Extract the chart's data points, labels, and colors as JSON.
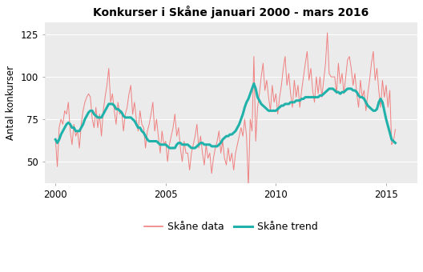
{
  "title": "Konkurser i Skåne januari 2000 - mars 2016",
  "ylabel": "Antal konkurser",
  "plot_bg_color": "#EBEBEB",
  "fig_bg_color": "#FFFFFF",
  "grid_color": "#FFFFFF",
  "data_color": "#F08080",
  "trend_color": "#20B2AA",
  "data_label": "Skåne data",
  "trend_label": "Skåne trend",
  "ylim": [
    37,
    132
  ],
  "yticks": [
    50,
    75,
    100,
    125
  ],
  "xlim": [
    1999.5,
    2016.42
  ],
  "xticks": [
    2000,
    2005,
    2010,
    2015
  ],
  "raw_data": [
    63,
    47,
    70,
    75,
    72,
    80,
    78,
    85,
    68,
    60,
    72,
    65,
    68,
    58,
    72,
    80,
    85,
    88,
    90,
    88,
    75,
    70,
    82,
    70,
    78,
    65,
    80,
    88,
    95,
    105,
    85,
    90,
    80,
    72,
    85,
    78,
    80,
    68,
    78,
    82,
    90,
    95,
    78,
    85,
    75,
    68,
    80,
    72,
    70,
    58,
    68,
    72,
    78,
    85,
    68,
    75,
    65,
    55,
    68,
    60,
    62,
    50,
    60,
    65,
    70,
    78,
    65,
    70,
    58,
    50,
    62,
    55,
    55,
    45,
    55,
    60,
    65,
    72,
    58,
    65,
    55,
    48,
    60,
    52,
    55,
    43,
    52,
    58,
    62,
    68,
    55,
    62,
    52,
    48,
    58,
    50,
    55,
    45,
    55,
    60,
    65,
    70,
    65,
    75,
    65,
    35,
    75,
    68,
    112,
    62,
    82,
    90,
    100,
    108,
    92,
    98,
    88,
    80,
    95,
    85,
    90,
    78,
    88,
    95,
    105,
    112,
    95,
    102,
    90,
    82,
    98,
    88,
    95,
    82,
    92,
    100,
    108,
    115,
    98,
    105,
    92,
    85,
    100,
    90,
    100,
    88,
    98,
    108,
    126,
    102,
    100,
    100,
    100,
    90,
    108,
    96,
    102,
    90,
    100,
    110,
    112,
    105,
    95,
    102,
    90,
    82,
    98,
    88,
    92,
    80,
    90,
    98,
    108,
    115,
    98,
    105,
    92,
    82,
    98,
    88,
    95,
    82,
    92,
    60,
    62,
    69
  ],
  "trend_data": [
    63,
    61,
    63,
    66,
    68,
    70,
    72,
    73,
    72,
    70,
    70,
    68,
    68,
    68,
    70,
    72,
    75,
    77,
    79,
    80,
    80,
    78,
    77,
    76,
    76,
    76,
    78,
    80,
    82,
    84,
    84,
    84,
    83,
    81,
    81,
    80,
    79,
    77,
    76,
    76,
    76,
    76,
    75,
    74,
    72,
    70,
    70,
    68,
    67,
    65,
    63,
    62,
    62,
    62,
    62,
    62,
    61,
    60,
    60,
    60,
    60,
    59,
    58,
    58,
    58,
    58,
    60,
    61,
    61,
    60,
    60,
    60,
    60,
    59,
    58,
    58,
    58,
    59,
    60,
    61,
    61,
    60,
    60,
    60,
    60,
    59,
    59,
    59,
    59,
    60,
    61,
    63,
    64,
    65,
    65,
    66,
    66,
    67,
    68,
    70,
    72,
    75,
    78,
    82,
    85,
    87,
    90,
    93,
    96,
    93,
    88,
    86,
    84,
    83,
    82,
    81,
    80,
    80,
    80,
    80,
    80,
    81,
    82,
    83,
    83,
    84,
    84,
    84,
    85,
    85,
    85,
    86,
    86,
    86,
    87,
    87,
    88,
    88,
    88,
    88,
    88,
    88,
    88,
    88,
    89,
    89,
    90,
    91,
    92,
    93,
    93,
    93,
    92,
    91,
    91,
    90,
    91,
    91,
    92,
    93,
    93,
    93,
    92,
    92,
    91,
    89,
    88,
    88,
    87,
    85,
    83,
    82,
    81,
    80,
    80,
    81,
    85,
    87,
    85,
    80,
    75,
    71,
    67,
    63,
    62,
    61
  ]
}
